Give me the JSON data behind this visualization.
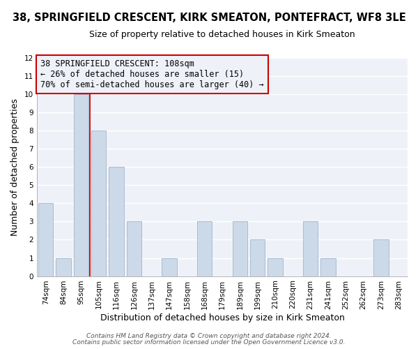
{
  "title": "38, SPRINGFIELD CRESCENT, KIRK SMEATON, PONTEFRACT, WF8 3LE",
  "subtitle": "Size of property relative to detached houses in Kirk Smeaton",
  "xlabel": "Distribution of detached houses by size in Kirk Smeaton",
  "ylabel": "Number of detached properties",
  "categories": [
    "74sqm",
    "84sqm",
    "95sqm",
    "105sqm",
    "116sqm",
    "126sqm",
    "137sqm",
    "147sqm",
    "158sqm",
    "168sqm",
    "179sqm",
    "189sqm",
    "199sqm",
    "210sqm",
    "220sqm",
    "231sqm",
    "241sqm",
    "252sqm",
    "262sqm",
    "273sqm",
    "283sqm"
  ],
  "values": [
    4,
    1,
    10,
    8,
    6,
    3,
    0,
    1,
    0,
    3,
    0,
    3,
    2,
    1,
    0,
    3,
    1,
    0,
    0,
    2,
    0
  ],
  "bar_color": "#ccd9e8",
  "bar_edge_color": "#aabbd0",
  "ref_line_index": 2.5,
  "reference_line_color": "#cc0000",
  "ylim": [
    0,
    12
  ],
  "yticks": [
    0,
    1,
    2,
    3,
    4,
    5,
    6,
    7,
    8,
    9,
    10,
    11,
    12
  ],
  "annotation_text": "38 SPRINGFIELD CRESCENT: 108sqm\n← 26% of detached houses are smaller (15)\n70% of semi-detached houses are larger (40) →",
  "annotation_box_edge_color": "#cc0000",
  "footer_line1": "Contains HM Land Registry data © Crown copyright and database right 2024.",
  "footer_line2": "Contains public sector information licensed under the Open Government Licence v3.0.",
  "background_color": "#ffffff",
  "plot_bg_color": "#eef2f8",
  "grid_color": "#ffffff",
  "title_fontsize": 10.5,
  "subtitle_fontsize": 9,
  "axis_label_fontsize": 9,
  "tick_fontsize": 7.5,
  "annotation_fontsize": 8.5,
  "footer_fontsize": 6.5
}
